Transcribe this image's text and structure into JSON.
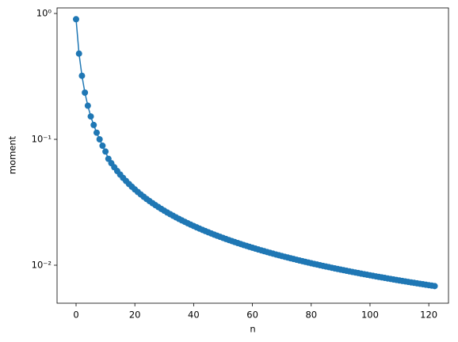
{
  "chart_data": {
    "type": "line",
    "xlabel": "n",
    "ylabel": "moment",
    "yscale": "log",
    "marker": "o",
    "xlim": [
      -6.47,
      126.7
    ],
    "ylim": [
      0.00499,
      1.107
    ],
    "xticks": [
      0,
      20,
      40,
      60,
      80,
      100,
      120
    ],
    "yticks": [
      {
        "value": 0.01,
        "label": "10⁻²"
      },
      {
        "value": 0.1,
        "label": "10⁻¹"
      },
      {
        "value": 1,
        "label": "10⁰"
      }
    ],
    "series": [
      {
        "color": "#1f77b4",
        "x": [
          0,
          1,
          2,
          3,
          4,
          5,
          6,
          7,
          8,
          9,
          10,
          11,
          12,
          13,
          14,
          15,
          16,
          17,
          18,
          19,
          20,
          21,
          22,
          23,
          24,
          25,
          26,
          27,
          28,
          29,
          30,
          31,
          32,
          33,
          34,
          35,
          36,
          37,
          38,
          39,
          40,
          41,
          42,
          43,
          44,
          45,
          46,
          47,
          48,
          49,
          50,
          51,
          52,
          53,
          54,
          55,
          56,
          57,
          58,
          59,
          60,
          61,
          62,
          63,
          64,
          65,
          66,
          67,
          68,
          69,
          70,
          71,
          72,
          73,
          74,
          75,
          76,
          77,
          78,
          79,
          80,
          81,
          82,
          83,
          84,
          85,
          86,
          87,
          88,
          89,
          90,
          91,
          92,
          93,
          94,
          95,
          96,
          97,
          98,
          99,
          100,
          101,
          102,
          103,
          104,
          105,
          106,
          107,
          108,
          109,
          110,
          111,
          112,
          113,
          114,
          115,
          116,
          117,
          118,
          119,
          120,
          121,
          122
        ],
        "values": [
          0.9,
          0.48,
          0.32,
          0.235,
          0.185,
          0.152,
          0.13,
          0.113,
          0.1,
          0.089,
          0.08,
          0.07,
          0.06462,
          0.06,
          0.056,
          0.0525,
          0.04941,
          0.04667,
          0.04421,
          0.042,
          0.04,
          0.03818,
          0.03652,
          0.035,
          0.0336,
          0.03231,
          0.03111,
          0.03,
          0.02897,
          0.028,
          0.0271,
          0.02625,
          0.02545,
          0.02471,
          0.024,
          0.02333,
          0.0227,
          0.02211,
          0.02154,
          0.021,
          0.02049,
          0.02,
          0.01953,
          0.01909,
          0.01867,
          0.01826,
          0.01787,
          0.0175,
          0.01714,
          0.0168,
          0.01647,
          0.01615,
          0.01585,
          0.01556,
          0.01527,
          0.015,
          0.01474,
          0.01448,
          0.01424,
          0.014,
          0.01377,
          0.01355,
          0.01333,
          0.01313,
          0.01292,
          0.01273,
          0.01254,
          0.01235,
          0.01217,
          0.012,
          0.01183,
          0.01167,
          0.01151,
          0.01135,
          0.0112,
          0.01105,
          0.01091,
          0.01077,
          0.01063,
          0.0105,
          0.01037,
          0.01024,
          0.01012,
          0.01,
          0.009882,
          0.009767,
          0.009655,
          0.009545,
          0.009438,
          0.009333,
          0.009231,
          0.00913,
          0.009032,
          0.008936,
          0.008842,
          0.00875,
          0.00866,
          0.008571,
          0.008485,
          0.0084,
          0.008317,
          0.008235,
          0.008155,
          0.008077,
          0.008,
          0.007925,
          0.00785,
          0.007778,
          0.007706,
          0.007636,
          0.007568,
          0.0075,
          0.007434,
          0.007368,
          0.007304,
          0.007241,
          0.007179,
          0.007119,
          0.007059,
          0.007,
          0.006942,
          0.006885,
          0.006829
        ]
      }
    ]
  }
}
